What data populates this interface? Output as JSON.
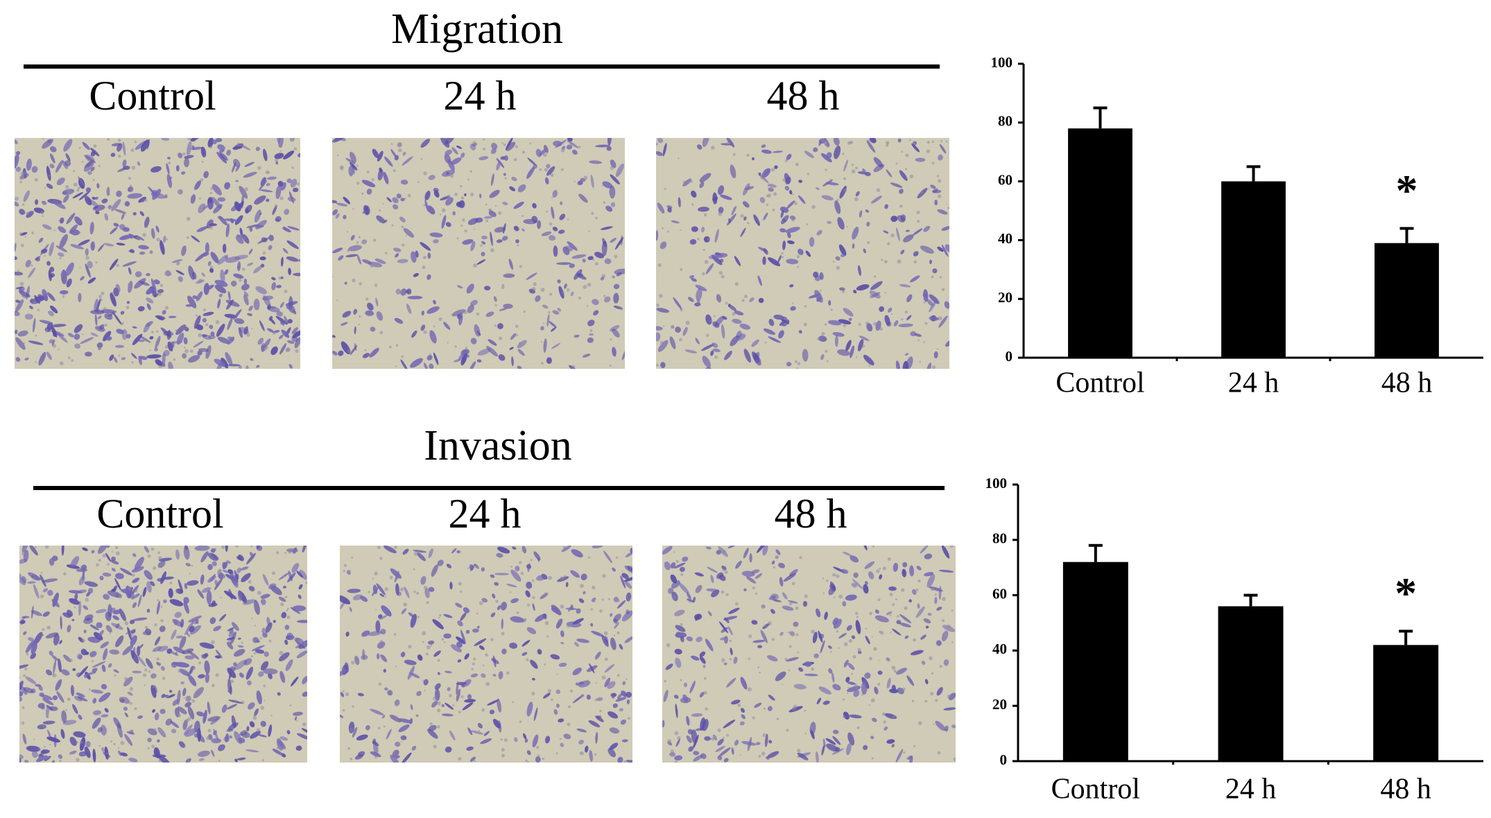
{
  "panels": [
    {
      "title": "Migration",
      "labels": [
        "Control",
        "24 h",
        "48 h"
      ]
    },
    {
      "title": "Invasion",
      "labels": [
        "Control",
        "24 h",
        "48 h"
      ]
    }
  ],
  "chart_data": [
    {
      "type": "bar",
      "categories": [
        "Control",
        "24 h",
        "48 h"
      ],
      "series": [
        {
          "color": "#000000",
          "values": [
            78,
            60,
            39
          ],
          "errors": [
            7,
            5,
            5
          ]
        }
      ],
      "ylim": [
        0,
        100
      ],
      "yticks": [
        0,
        20,
        40,
        60,
        80,
        100
      ],
      "annotations": [
        {
          "x": "48 h",
          "text": "*"
        }
      ]
    },
    {
      "type": "bar",
      "categories": [
        "Control",
        "24 h",
        "48 h"
      ],
      "series": [
        {
          "color": "#000000",
          "values": [
            72,
            56,
            42
          ],
          "errors": [
            6,
            4,
            5
          ]
        }
      ],
      "ylim": [
        0,
        100
      ],
      "yticks": [
        0,
        20,
        40,
        60,
        80,
        100
      ],
      "annotations": [
        {
          "x": "48 h",
          "text": "*"
        }
      ]
    }
  ]
}
